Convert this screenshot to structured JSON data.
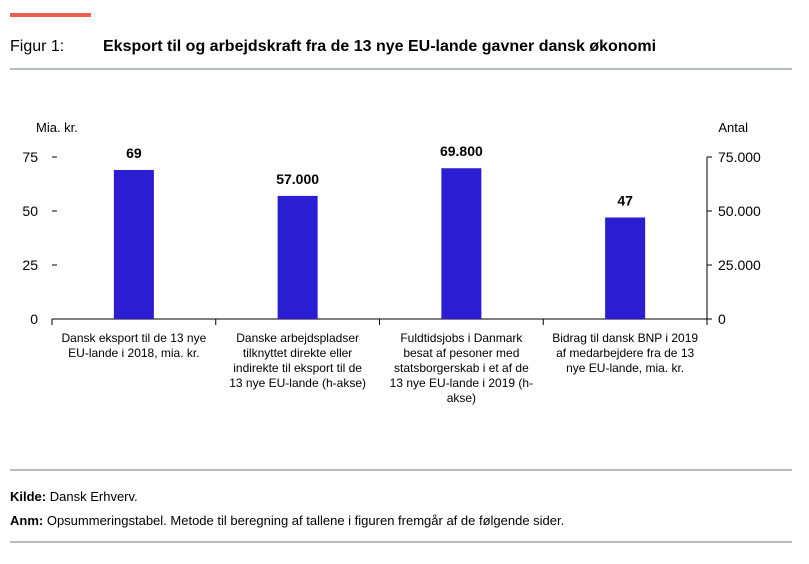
{
  "figure": {
    "label": "Figur 1:",
    "title": "Eksport til og arbejdskraft fra de 13 nye EU-lande gavner dansk økonomi"
  },
  "footer": {
    "source_label": "Kilde:",
    "source_text": "Dansk Erhverv.",
    "note_label": "Anm:",
    "note_text": "Opsummeringstabel. Metode til beregning af tallene i figuren fremgår af de følgende sider."
  },
  "colors": {
    "accent": "#e8604c",
    "bar": "#2b1dd1",
    "rule": "#b9bcbf"
  },
  "chart_data": {
    "type": "bar",
    "left_axis_unit": "Mia. kr.",
    "right_axis_unit": "Antal",
    "ylim_left": [
      0,
      75
    ],
    "ylim_right": [
      0,
      75000
    ],
    "left_ticks": [
      0,
      25,
      50,
      75
    ],
    "left_tick_labels": [
      "0",
      "25",
      "50",
      "75"
    ],
    "right_ticks": [
      0,
      25000,
      50000,
      75000
    ],
    "right_tick_labels": [
      "0",
      "25.000",
      "50.000",
      "75.000"
    ],
    "grid": false,
    "bars": [
      {
        "label_lines": [
          "Dansk eksport til de 13 nye",
          "EU-lande i 2018, mia. kr."
        ],
        "value": 69,
        "value_label": "69",
        "axis": "left"
      },
      {
        "label_lines": [
          "Danske arbejdspladser",
          "tilknyttet direkte eller",
          "indirekte til eksport til de",
          "13 nye EU-lande (h-akse)"
        ],
        "value": 57000,
        "value_label": "57.000",
        "axis": "right"
      },
      {
        "label_lines": [
          "Fuldtidsjobs i Danmark",
          "besat af pesoner med",
          "statsborgerskab i et af de",
          "13 nye EU-lande i 2019 (h-",
          "akse)"
        ],
        "value": 69800,
        "value_label": "69.800",
        "axis": "right"
      },
      {
        "label_lines": [
          "Bidrag til dansk BNP i 2019",
          "af medarbejdere fra de 13",
          "nye EU-lande, mia. kr."
        ],
        "value": 47,
        "value_label": "47",
        "axis": "left"
      }
    ]
  }
}
